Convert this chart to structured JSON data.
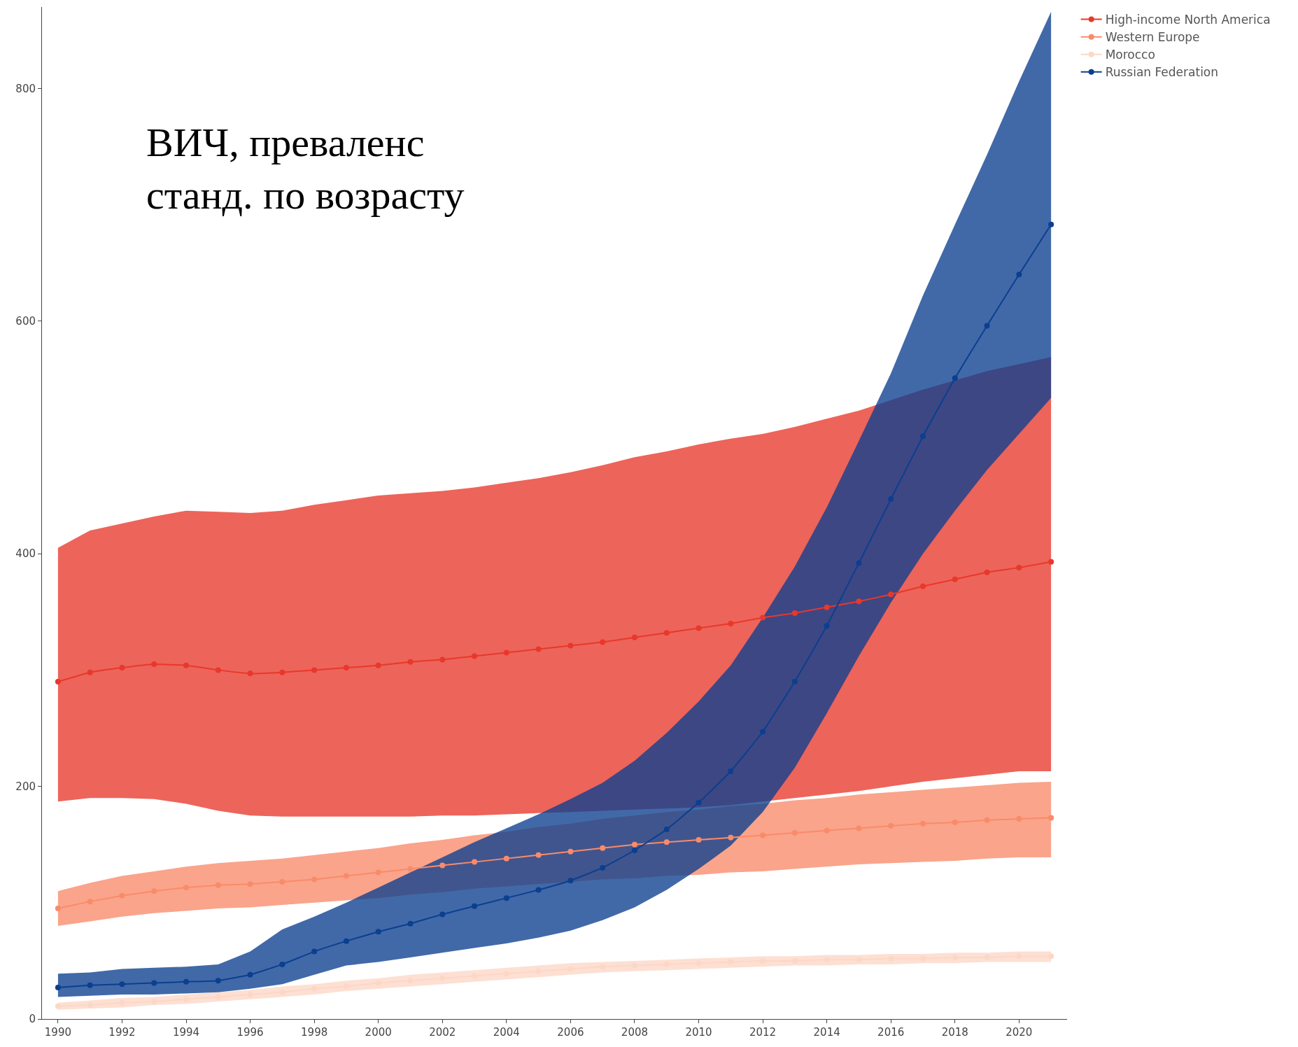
{
  "chart_data": {
    "type": "line",
    "annotations": [
      "ВИЧ, преваленс\nстанд. по возрасту"
    ],
    "x": [
      1990,
      1991,
      1992,
      1993,
      1994,
      1995,
      1996,
      1997,
      1998,
      1999,
      2000,
      2001,
      2002,
      2003,
      2004,
      2005,
      2006,
      2007,
      2008,
      2009,
      2010,
      2011,
      2012,
      2013,
      2014,
      2015,
      2016,
      2017,
      2018,
      2019,
      2020,
      2021
    ],
    "xlim": [
      1989.5,
      2021.5
    ],
    "xticks": [
      1990,
      1992,
      1994,
      1996,
      1998,
      2000,
      2002,
      2004,
      2006,
      2008,
      2010,
      2012,
      2014,
      2016,
      2018,
      2020
    ],
    "ylim": [
      0,
      870
    ],
    "yticks": [
      0,
      200,
      400,
      600,
      800
    ],
    "legend": "top right",
    "marker": "circle",
    "line_style": "solid",
    "series": [
      {
        "name": "High-income North America",
        "color": "#e8382b",
        "values": [
          290,
          298,
          302,
          305,
          304,
          300,
          297,
          298,
          300,
          302,
          304,
          307,
          309,
          312,
          315,
          318,
          321,
          324,
          328,
          332,
          336,
          340,
          345,
          349,
          354,
          359,
          365,
          372,
          378,
          384,
          388,
          393
        ],
        "upper": [
          405,
          420,
          426,
          432,
          437,
          436,
          435,
          437,
          442,
          446,
          450,
          452,
          454,
          457,
          461,
          465,
          470,
          476,
          483,
          488,
          494,
          499,
          503,
          509,
          516,
          523,
          532,
          541,
          549,
          557,
          563,
          569
        ],
        "lower": [
          187,
          190,
          190,
          189,
          185,
          179,
          175,
          174,
          174,
          174,
          174,
          174,
          175,
          175,
          176,
          177,
          178,
          179,
          180,
          181,
          182,
          184,
          187,
          190,
          193,
          196,
          200,
          204,
          207,
          210,
          213,
          213
        ]
      },
      {
        "name": "Western Europe",
        "color": "#f98b6a",
        "values": [
          95,
          101,
          106,
          110,
          113,
          115,
          116,
          118,
          120,
          123,
          126,
          129,
          132,
          135,
          138,
          141,
          144,
          147,
          150,
          152,
          154,
          156,
          158,
          160,
          162,
          164,
          166,
          168,
          169,
          171,
          172,
          173
        ],
        "upper": [
          110,
          117,
          123,
          127,
          131,
          134,
          136,
          138,
          141,
          144,
          147,
          151,
          154,
          158,
          161,
          165,
          168,
          172,
          175,
          178,
          180,
          183,
          185,
          188,
          190,
          193,
          195,
          197,
          199,
          201,
          203,
          204
        ],
        "lower": [
          80,
          84,
          88,
          91,
          93,
          95,
          96,
          98,
          100,
          102,
          104,
          107,
          109,
          112,
          114,
          116,
          118,
          120,
          121,
          123,
          124,
          126,
          127,
          129,
          131,
          133,
          134,
          135,
          136,
          138,
          139,
          139
        ]
      },
      {
        "name": "Morocco",
        "color": "#fcd7c6",
        "values": [
          11,
          12,
          14,
          15,
          17,
          19,
          21,
          23,
          26,
          28,
          31,
          33,
          35,
          37,
          39,
          41,
          43,
          45,
          46,
          47,
          48,
          49,
          50,
          50,
          51,
          51,
          52,
          52,
          53,
          53,
          54,
          54
        ],
        "upper": [
          14,
          16,
          18,
          19,
          21,
          23,
          25,
          28,
          30,
          33,
          35,
          38,
          40,
          42,
          44,
          46,
          48,
          49,
          50,
          51,
          52,
          53,
          54,
          54,
          55,
          55,
          56,
          56,
          57,
          57,
          58,
          58
        ],
        "lower": [
          8,
          9,
          10,
          12,
          13,
          15,
          17,
          19,
          21,
          24,
          26,
          28,
          30,
          32,
          34,
          36,
          38,
          40,
          41,
          42,
          43,
          44,
          45,
          46,
          46,
          47,
          47,
          48,
          48,
          49,
          49,
          49
        ]
      },
      {
        "name": "Russian Federation",
        "color": "#0b3f8f",
        "values": [
          27,
          29,
          30,
          31,
          32,
          33,
          38,
          47,
          58,
          67,
          75,
          82,
          90,
          97,
          104,
          111,
          119,
          130,
          145,
          163,
          186,
          213,
          247,
          290,
          338,
          392,
          447,
          501,
          551,
          596,
          640,
          683
        ],
        "upper": [
          39,
          40,
          43,
          44,
          45,
          47,
          58,
          77,
          88,
          100,
          113,
          126,
          139,
          152,
          164,
          176,
          189,
          203,
          222,
          246,
          273,
          304,
          345,
          389,
          440,
          497,
          555,
          622,
          683,
          743,
          806,
          866
        ],
        "lower": [
          19,
          20,
          21,
          21,
          22,
          23,
          26,
          30,
          38,
          46,
          49,
          53,
          57,
          61,
          65,
          70,
          76,
          85,
          96,
          111,
          129,
          149,
          178,
          216,
          263,
          312,
          358,
          400,
          437,
          472,
          503,
          534
        ]
      }
    ]
  }
}
